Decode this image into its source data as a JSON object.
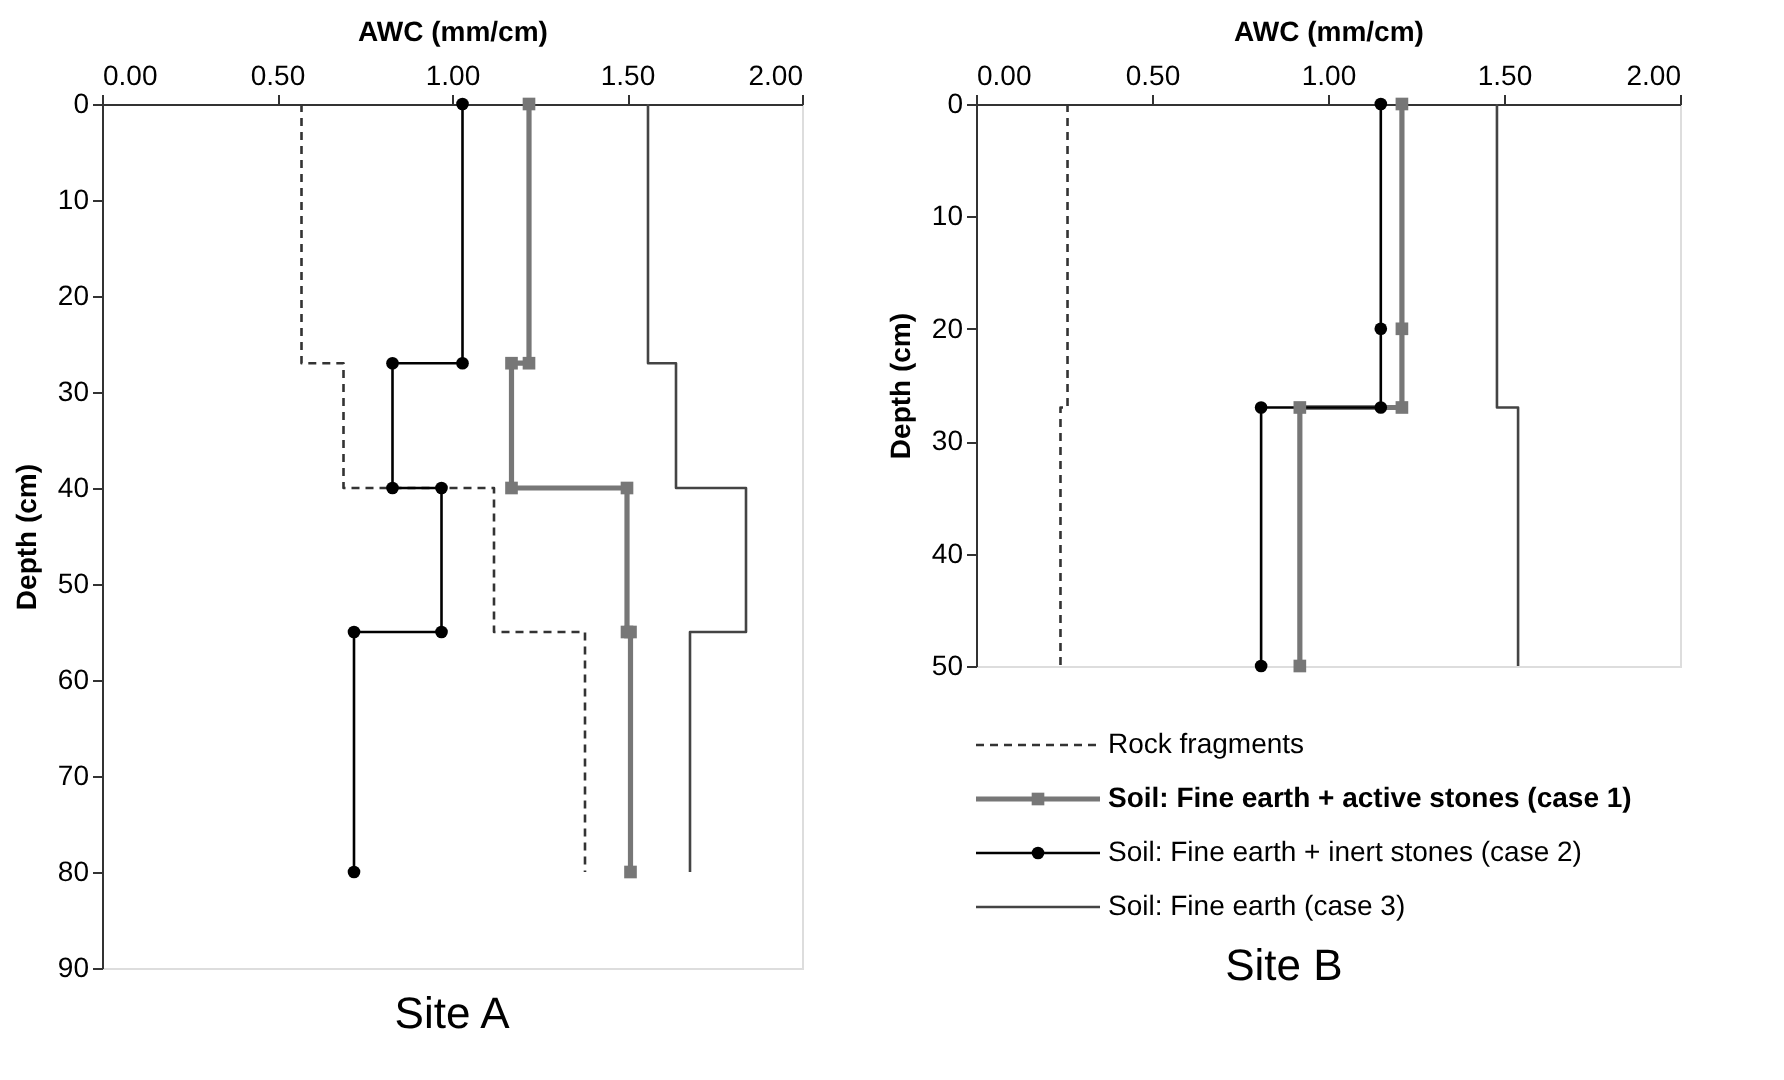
{
  "chart_data": [
    {
      "type": "line",
      "title": "Site A",
      "xlabel": "AWC (mm/cm)",
      "ylabel": "Depth (cm)",
      "xlim": [
        0,
        2
      ],
      "xticks": [
        {
          "value": 0,
          "label": "0.00"
        },
        {
          "value": 0.5,
          "label": "0.50"
        },
        {
          "value": 1,
          "label": "1.00"
        },
        {
          "value": 1.5,
          "label": "1.50"
        },
        {
          "value": 2,
          "label": "2.00"
        }
      ],
      "ylim": [
        90,
        0
      ],
      "yticks": [
        0,
        10,
        20,
        30,
        40,
        50,
        60,
        70,
        80,
        90
      ],
      "grid": false,
      "legend": false,
      "series": [
        {
          "color": "#333333",
          "line_style": "dashed",
          "marker": "none",
          "x": [
            0.57,
            0.57,
            0.69,
            0.69,
            1.12,
            1.12,
            1.38,
            1.38
          ],
          "values": [
            0,
            27,
            27,
            40,
            40,
            55,
            55,
            80
          ]
        },
        {
          "color": "#777777",
          "line_style": "solid",
          "marker": "square",
          "x": [
            1.22,
            1.22,
            1.17,
            1.17,
            1.5,
            1.5,
            1.51,
            1.51
          ],
          "values": [
            0,
            27,
            27,
            40,
            40,
            55,
            55,
            80
          ]
        },
        {
          "color": "#000000",
          "line_style": "solid",
          "marker": "circle",
          "x": [
            1.03,
            1.03,
            0.83,
            0.83,
            0.97,
            0.97,
            0.72,
            0.72
          ],
          "values": [
            0,
            27,
            27,
            40,
            40,
            55,
            55,
            80
          ]
        },
        {
          "color": "#444444",
          "line_style": "solid",
          "marker": "none",
          "x": [
            1.56,
            1.56,
            1.64,
            1.64,
            1.84,
            1.84,
            1.68,
            1.68
          ],
          "values": [
            0,
            27,
            27,
            40,
            40,
            55,
            55,
            80
          ]
        }
      ]
    },
    {
      "type": "line",
      "title": "Site B",
      "xlabel": "AWC (mm/cm)",
      "ylabel": "Depth (cm)",
      "xlim": [
        0,
        2
      ],
      "xticks": [
        {
          "value": 0,
          "label": "0.00"
        },
        {
          "value": 0.5,
          "label": "0.50"
        },
        {
          "value": 1,
          "label": "1.00"
        },
        {
          "value": 1.5,
          "label": "1.50"
        },
        {
          "value": 2,
          "label": "2.00"
        }
      ],
      "ylim": [
        50,
        0
      ],
      "yticks": [
        0,
        10,
        20,
        30,
        40,
        50
      ],
      "grid": false,
      "legend": "bottom",
      "series": [
        {
          "name": "Rock fragments",
          "color": "#333333",
          "line_style": "dashed",
          "marker": "none",
          "x": [
            0.26,
            0.26,
            0.24,
            0.24
          ],
          "values": [
            0,
            27,
            27,
            50
          ]
        },
        {
          "name": "Soil: Fine earth + active stones (case 1)",
          "color": "#777777",
          "line_style": "solid",
          "marker": "square",
          "x": [
            1.21,
            1.21,
            1.21,
            0.92,
            0.92
          ],
          "values": [
            0,
            20,
            27,
            27,
            50
          ]
        },
        {
          "name": "Soil: Fine earth + inert stones (case 2)",
          "color": "#000000",
          "line_style": "solid",
          "marker": "circle",
          "x": [
            1.15,
            1.15,
            1.15,
            0.81,
            0.81
          ],
          "values": [
            0,
            20,
            27,
            27,
            50
          ]
        },
        {
          "name": "Soil: Fine earth (case 3)",
          "color": "#444444",
          "line_style": "solid",
          "marker": "none",
          "x": [
            1.48,
            1.48,
            1.54,
            1.54
          ],
          "values": [
            0,
            27,
            27,
            50
          ]
        }
      ]
    }
  ]
}
